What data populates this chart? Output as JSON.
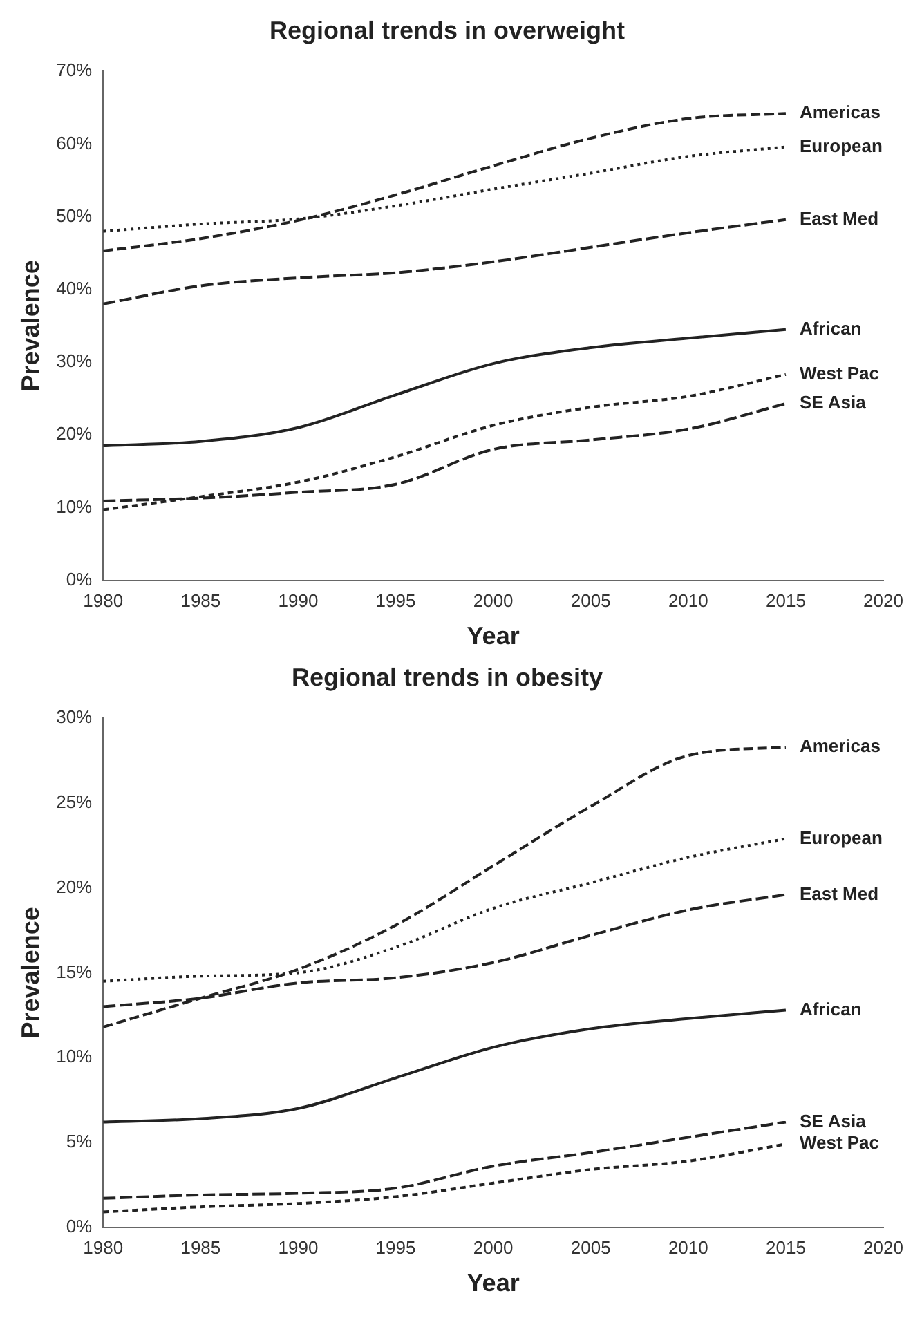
{
  "chart_data": [
    {
      "type": "line",
      "title": "Regional trends in overweight",
      "xlabel": "Year",
      "ylabel": "Prevalence",
      "x": [
        1980,
        1985,
        1990,
        1995,
        2000,
        2005,
        2010,
        2015
      ],
      "xlim": [
        1980,
        2020
      ],
      "xticks": [
        1980,
        1985,
        1990,
        1995,
        2000,
        2005,
        2010,
        2015,
        2020
      ],
      "ylim": [
        0,
        70
      ],
      "yticks": [
        {
          "value": 0,
          "label": "0%"
        },
        {
          "value": 10,
          "label": "10%"
        },
        {
          "value": 20,
          "label": "20%"
        },
        {
          "value": 30,
          "label": "30%"
        },
        {
          "value": 40,
          "label": "40%"
        },
        {
          "value": 50,
          "label": "50%"
        },
        {
          "value": 60,
          "label": "60%"
        },
        {
          "value": 70,
          "label": "70%"
        }
      ],
      "grid": false,
      "legend": false,
      "marker": "none",
      "series": [
        {
          "name": "Americas",
          "color": "#222222",
          "line_style": "dashed",
          "values": [
            45.3,
            47,
            49.5,
            53,
            57,
            60.8,
            63.5,
            64.2
          ]
        },
        {
          "name": "European",
          "color": "#222222",
          "line_style": "dotted",
          "values": [
            48,
            49,
            49.7,
            51.5,
            53.8,
            56,
            58.3,
            59.6
          ]
        },
        {
          "name": "East Med",
          "color": "#222222",
          "line_style": "dashed",
          "values": [
            38,
            40.5,
            41.6,
            42.3,
            43.8,
            45.8,
            47.8,
            49.6
          ]
        },
        {
          "name": "African",
          "color": "#222222",
          "line_style": "solid",
          "values": [
            18.5,
            19.1,
            21,
            25.5,
            29.8,
            32,
            33.3,
            34.5
          ]
        },
        {
          "name": "West Pac",
          "color": "#222222",
          "line_style": "dashed",
          "values": [
            9.7,
            11.5,
            13.5,
            17,
            21.3,
            23.8,
            25.3,
            28.3
          ]
        },
        {
          "name": "SE Asia",
          "color": "#222222",
          "line_style": "dashed",
          "values": [
            10.9,
            11.3,
            12.1,
            13.2,
            18,
            19.3,
            20.8,
            24.3
          ]
        }
      ]
    },
    {
      "type": "line",
      "title": "Regional trends in obesity",
      "xlabel": "Year",
      "ylabel": "Prevalence",
      "x": [
        1980,
        1985,
        1990,
        1995,
        2000,
        2005,
        2010,
        2015
      ],
      "xlim": [
        1980,
        2020
      ],
      "xticks": [
        1980,
        1985,
        1990,
        1995,
        2000,
        2005,
        2010,
        2015,
        2020
      ],
      "ylim": [
        0,
        30
      ],
      "yticks": [
        {
          "value": 0,
          "label": "0%"
        },
        {
          "value": 5,
          "label": "5%"
        },
        {
          "value": 10,
          "label": "10%"
        },
        {
          "value": 15,
          "label": "15%"
        },
        {
          "value": 20,
          "label": "20%"
        },
        {
          "value": 25,
          "label": "25%"
        },
        {
          "value": 30,
          "label": "30%"
        }
      ],
      "grid": false,
      "legend": false,
      "marker": "none",
      "series": [
        {
          "name": "Americas",
          "color": "#222222",
          "line_style": "dashed",
          "values": [
            11.8,
            13.5,
            15.2,
            17.8,
            21.3,
            24.8,
            27.8,
            28.3
          ]
        },
        {
          "name": "European",
          "color": "#222222",
          "line_style": "dotted",
          "values": [
            14.5,
            14.8,
            15,
            16.5,
            18.8,
            20.3,
            21.8,
            22.9
          ]
        },
        {
          "name": "East Med",
          "color": "#222222",
          "line_style": "dashed",
          "values": [
            13,
            13.5,
            14.4,
            14.7,
            15.6,
            17.2,
            18.7,
            19.6
          ]
        },
        {
          "name": "African",
          "color": "#222222",
          "line_style": "solid",
          "values": [
            6.2,
            6.4,
            7,
            8.8,
            10.6,
            11.7,
            12.3,
            12.8
          ]
        },
        {
          "name": "West Pac",
          "color": "#222222",
          "line_style": "dashed",
          "values": [
            0.9,
            1.2,
            1.4,
            1.8,
            2.6,
            3.4,
            3.9,
            4.9
          ]
        },
        {
          "name": "SE Asia",
          "color": "#222222",
          "line_style": "dashed",
          "values": [
            1.7,
            1.9,
            2,
            2.3,
            3.6,
            4.4,
            5.3,
            6.2
          ]
        }
      ]
    }
  ]
}
